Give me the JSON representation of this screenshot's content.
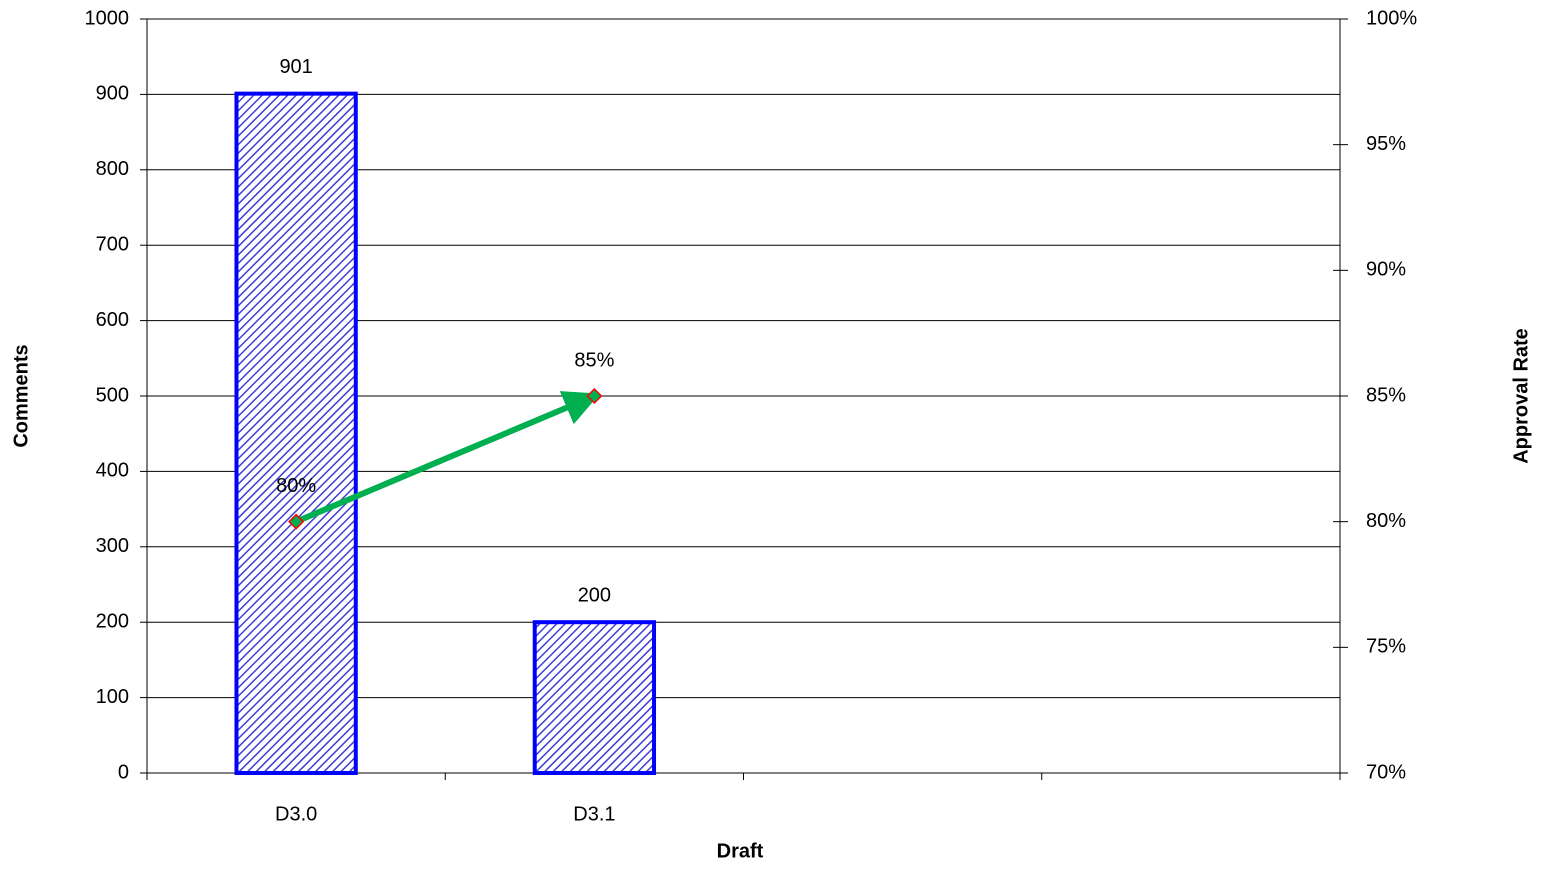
{
  "chart_data": {
    "type": "bar",
    "xlabel": "Draft",
    "ylabel": "Comments",
    "y2label": "Approval Rate",
    "categories": [
      "D3.0",
      "D3.1",
      null,
      null
    ],
    "series": [
      {
        "type": "bar",
        "color": "#0000ff",
        "values": [
          901,
          200,
          null,
          null
        ]
      },
      {
        "type": "line",
        "axis": "y2",
        "color": "#00b050",
        "marker_color": "#ff0000",
        "values": [
          80,
          85,
          null,
          null
        ],
        "value_labels": [
          "80%",
          "85%",
          null,
          null
        ]
      }
    ],
    "ylim": [
      0,
      1000
    ],
    "yticks": [
      0,
      100,
      200,
      300,
      400,
      500,
      600,
      700,
      800,
      900,
      1000
    ],
    "y2lim": [
      70,
      100
    ],
    "y2ticks": [
      {
        "value": 70,
        "label": "70%"
      },
      {
        "value": 75,
        "label": "75%"
      },
      {
        "value": 80,
        "label": "80%"
      },
      {
        "value": 85,
        "label": "85%"
      },
      {
        "value": 90,
        "label": "90%"
      },
      {
        "value": 95,
        "label": "95%"
      },
      {
        "value": 100,
        "label": "100%"
      }
    ],
    "grid": true
  }
}
